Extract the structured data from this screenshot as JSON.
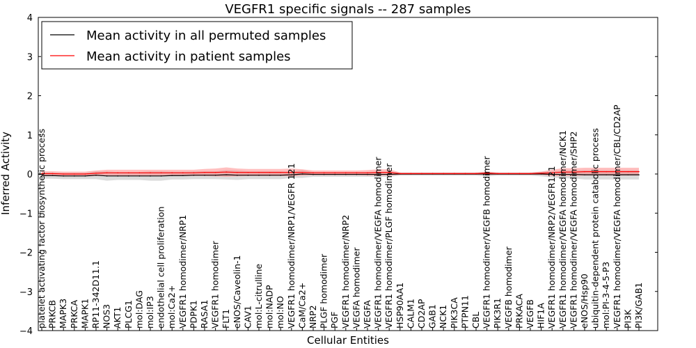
{
  "chart_data": {
    "type": "line",
    "title": "VEGFR1 specific signals -- 287 samples",
    "xlabel": "Cellular Entities",
    "ylabel": "Inferred Activity",
    "ylim": [
      -4,
      4
    ],
    "yticks": [
      -4,
      -3,
      -2,
      -1,
      0,
      1,
      2,
      3,
      4
    ],
    "legend_position": "upper-left",
    "grid": false,
    "colors": {
      "permuted": "#000000",
      "patient": "#ff0000",
      "permuted_band": "#bdbdbd",
      "patient_band": "#ff8080"
    },
    "categories": [
      "platelet activating factor biosynthetic process",
      "PRKCB",
      "MAPK3",
      "PRKCA",
      "MAPK1",
      "RP11-342D11.1",
      "NOS3",
      "AKT1",
      "PLCG1",
      "mol:DAG",
      "mol:IP3",
      "endothelial cell proliferation",
      "mol:Ca2+",
      "VEGFR1 homodimer/NRP1",
      "PDPK1",
      "RASA1",
      "VEGFR1 homodimer",
      "FLT1",
      "eNOS/Caveolin-1",
      "CAV1",
      "mol:L-citrulline",
      "mol:NADP",
      "mol:NO",
      "VEGFR1 homodimer/NRP1/VEGFR 121",
      "CaM/Ca2+",
      "NRP2",
      "PLGF homodimer",
      "PGF",
      "VEGFR1 homodimer/NRP2",
      "VEGFA homodimer",
      "VEGFA",
      "VEGFR1 homodimer/VEGFA homodimer",
      "VEGFR1 homodimer/PLGF homodimer",
      "HSP90AA1",
      "CALM1",
      "CD2AP",
      "GAB1",
      "NCK1",
      "PIK3CA",
      "PTPN11",
      "CBL",
      "VEGFR1 homodimer/VEGFB homodimer",
      "PIK3R1",
      "VEGFB homodimer",
      "PRKACA",
      "VEGFB",
      "HIF1A",
      "VEGFR1 homodimer/NRP2/VEGFR121",
      "VEGFR1 homodimer/VEGFA homodimer/NCK1",
      "VEGFR1 homodimer/VEGFA homodimer/SHP2",
      "eNOS/Hsp90",
      "ubiquitin-dependent protein catabolic process",
      "mol:PI-3-4-5-P3",
      "VEGFR1 homodimer/VEGFA homodimer/CBL/CD2AP",
      "PI3K",
      "PI3K/GAB1"
    ],
    "series": [
      {
        "name": "Mean activity in all permuted samples",
        "values": [
          -0.04,
          -0.04,
          -0.05,
          -0.05,
          -0.05,
          -0.03,
          -0.05,
          -0.05,
          -0.05,
          -0.05,
          -0.05,
          -0.05,
          -0.04,
          -0.04,
          -0.03,
          -0.03,
          -0.03,
          -0.02,
          -0.03,
          -0.03,
          -0.03,
          -0.03,
          -0.03,
          -0.02,
          0.0,
          -0.01,
          -0.01,
          -0.01,
          -0.01,
          -0.01,
          -0.01,
          -0.01,
          -0.01,
          0.0,
          0.0,
          0.0,
          0.0,
          0.0,
          0.0,
          0.0,
          0.0,
          0.0,
          0.0,
          0.0,
          0.0,
          0.0,
          0.0,
          -0.01,
          -0.01,
          -0.01,
          -0.02,
          -0.02,
          -0.02,
          -0.02,
          -0.02,
          -0.02
        ],
        "band": [
          0.08,
          0.08,
          0.08,
          0.08,
          0.08,
          0.1,
          0.12,
          0.1,
          0.1,
          0.1,
          0.12,
          0.12,
          0.1,
          0.1,
          0.1,
          0.1,
          0.1,
          0.12,
          0.12,
          0.1,
          0.1,
          0.1,
          0.1,
          0.08,
          0.1,
          0.06,
          0.06,
          0.06,
          0.06,
          0.06,
          0.06,
          0.06,
          0.06,
          0.04,
          0.04,
          0.04,
          0.04,
          0.04,
          0.04,
          0.04,
          0.04,
          0.06,
          0.04,
          0.04,
          0.04,
          0.04,
          0.06,
          0.08,
          0.1,
          0.1,
          0.12,
          0.12,
          0.12,
          0.12,
          0.12,
          0.12
        ]
      },
      {
        "name": "Mean activity in patient samples",
        "values": [
          0.01,
          0.01,
          0.0,
          0.0,
          0.0,
          0.02,
          0.03,
          0.03,
          0.03,
          0.03,
          0.03,
          0.03,
          0.03,
          0.03,
          0.03,
          0.04,
          0.04,
          0.05,
          0.04,
          0.04,
          0.04,
          0.04,
          0.04,
          0.04,
          0.04,
          0.03,
          0.03,
          0.03,
          0.03,
          0.03,
          0.03,
          0.04,
          0.04,
          0.01,
          0.01,
          0.01,
          0.01,
          0.01,
          0.01,
          0.01,
          0.01,
          0.02,
          0.01,
          0.01,
          0.01,
          0.01,
          0.02,
          0.03,
          0.05,
          0.05,
          0.06,
          0.06,
          0.06,
          0.06,
          0.06,
          0.06
        ],
        "band": [
          0.06,
          0.06,
          0.06,
          0.06,
          0.06,
          0.07,
          0.08,
          0.08,
          0.08,
          0.08,
          0.08,
          0.08,
          0.08,
          0.08,
          0.08,
          0.09,
          0.1,
          0.12,
          0.1,
          0.09,
          0.09,
          0.09,
          0.09,
          0.1,
          0.08,
          0.06,
          0.06,
          0.06,
          0.06,
          0.06,
          0.07,
          0.08,
          0.08,
          0.03,
          0.03,
          0.03,
          0.03,
          0.03,
          0.03,
          0.03,
          0.03,
          0.04,
          0.03,
          0.03,
          0.03,
          0.03,
          0.04,
          0.08,
          0.1,
          0.1,
          0.1,
          0.1,
          0.1,
          0.1,
          0.1,
          0.1
        ]
      }
    ]
  }
}
